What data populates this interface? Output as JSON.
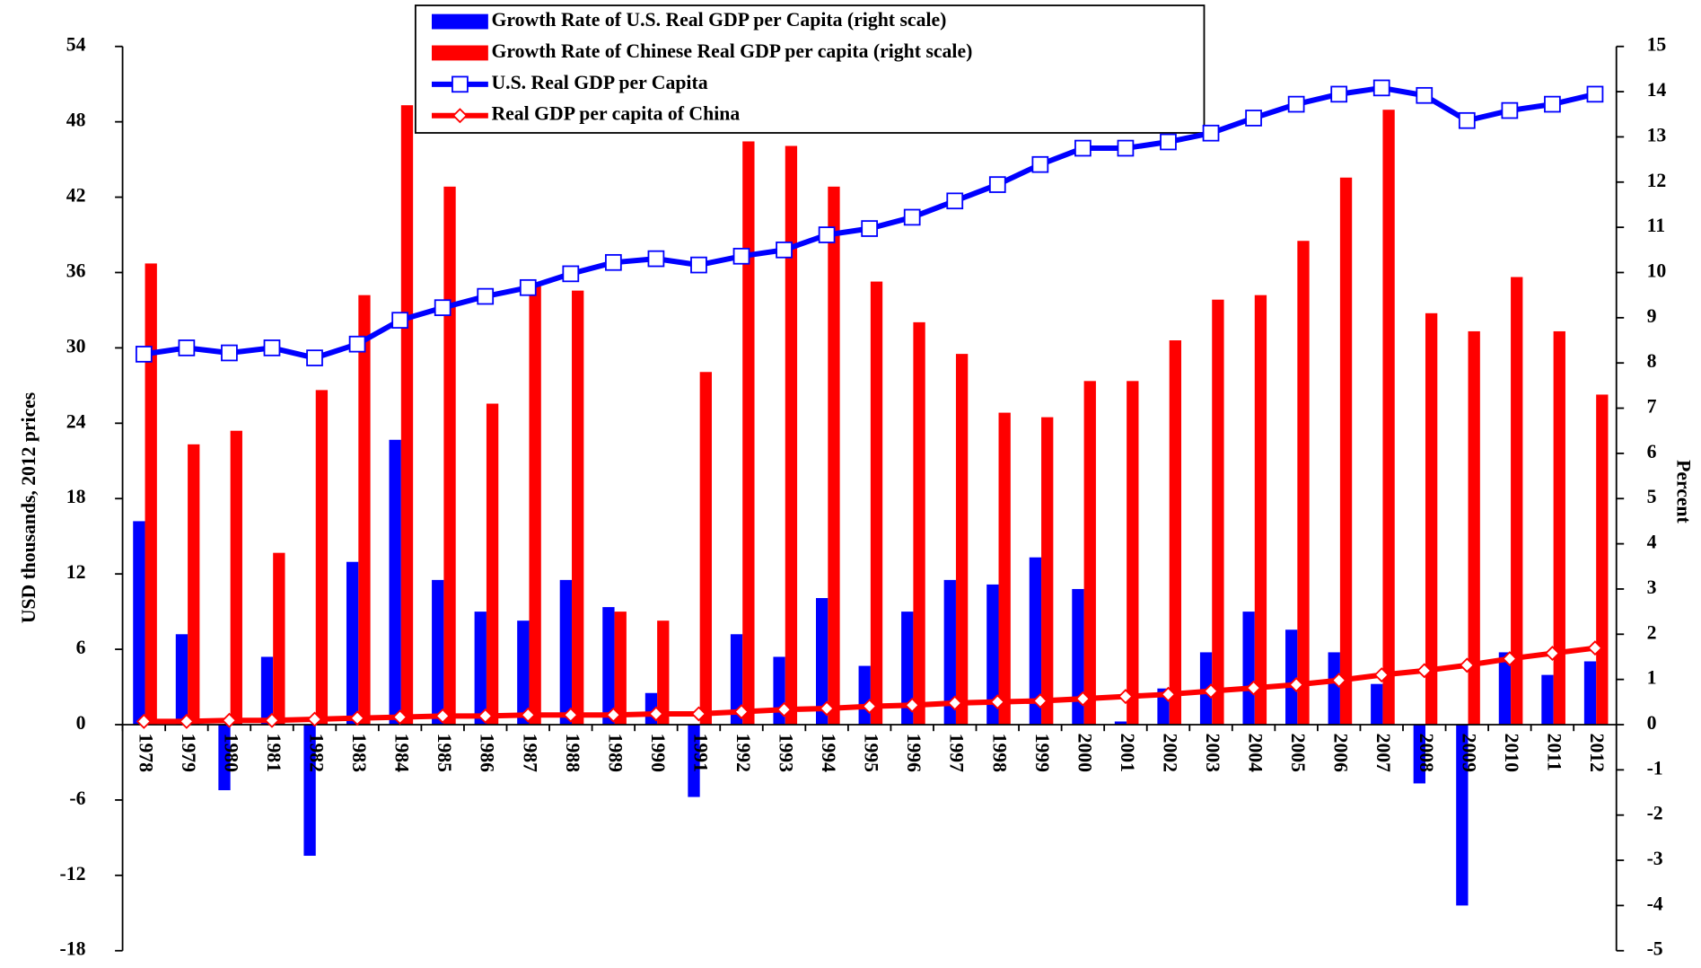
{
  "chart_data": {
    "type": "bar",
    "categories": [
      "1978",
      "1979",
      "1980",
      "1981",
      "1982",
      "1983",
      "1984",
      "1985",
      "1986",
      "1987",
      "1988",
      "1989",
      "1990",
      "1991",
      "1992",
      "1993",
      "1994",
      "1995",
      "1996",
      "1997",
      "1998",
      "1999",
      "2000",
      "2001",
      "2002",
      "2003",
      "2004",
      "2005",
      "2006",
      "2007",
      "2008",
      "2009",
      "2010",
      "2011",
      "2012"
    ],
    "ylabel": "USD thousands, 2012 prices",
    "y2label": "Percent",
    "ylim": [
      -18,
      54
    ],
    "yticks": [
      -18,
      -12,
      -6,
      0,
      6,
      12,
      18,
      24,
      30,
      36,
      42,
      48,
      54
    ],
    "y2lim": [
      -5,
      15
    ],
    "y2ticks": [
      -5,
      -4,
      -3,
      -2,
      -1,
      0,
      1,
      2,
      3,
      4,
      5,
      6,
      7,
      8,
      9,
      10,
      11,
      12,
      13,
      14,
      15
    ],
    "series": [
      {
        "name": "Growth Rate of U.S. Real GDP per Capita (right scale)",
        "type": "bar",
        "axis": "y2",
        "color": "#0000ff",
        "values": [
          4.5,
          2.0,
          -1.45,
          1.5,
          -2.9,
          3.6,
          6.3,
          3.2,
          2.5,
          2.3,
          3.2,
          2.6,
          0.7,
          -1.6,
          2.0,
          1.5,
          2.8,
          1.3,
          2.5,
          3.2,
          3.1,
          3.7,
          3.0,
          0.07,
          0.8,
          1.6,
          2.5,
          2.1,
          1.6,
          0.9,
          -1.3,
          -4.0,
          1.6,
          1.1,
          1.4
        ]
      },
      {
        "name": "Growth Rate of Chinese Real GDP per capita (right scale)",
        "type": "bar",
        "axis": "y2",
        "color": "#ff0000",
        "values": [
          10.2,
          6.2,
          6.5,
          3.8,
          7.4,
          9.5,
          13.7,
          11.9,
          7.1,
          9.7,
          9.6,
          2.5,
          2.3,
          7.8,
          12.9,
          12.8,
          11.9,
          9.8,
          8.9,
          8.2,
          6.9,
          6.8,
          7.6,
          7.6,
          8.5,
          9.4,
          9.5,
          10.7,
          12.1,
          13.6,
          9.1,
          8.7,
          9.9,
          8.7,
          7.3
        ]
      },
      {
        "name": "U.S. Real GDP per Capita",
        "type": "line",
        "marker": "square",
        "color": "#0000ff",
        "values": [
          29.5,
          30.0,
          29.6,
          30.0,
          29.2,
          30.3,
          32.2,
          33.2,
          34.1,
          34.8,
          35.9,
          36.8,
          37.1,
          36.6,
          37.3,
          37.8,
          39.0,
          39.5,
          40.4,
          41.7,
          43.0,
          44.6,
          45.9,
          45.9,
          46.4,
          47.1,
          48.3,
          49.4,
          50.2,
          50.7,
          50.1,
          48.1,
          48.9,
          49.4,
          50.2
        ]
      },
      {
        "name": "Real GDP per capita of China",
        "type": "line",
        "marker": "diamond",
        "color": "#ff0000",
        "values": [
          0.26,
          0.26,
          0.34,
          0.34,
          0.43,
          0.52,
          0.6,
          0.69,
          0.69,
          0.77,
          0.77,
          0.77,
          0.86,
          0.86,
          1.03,
          1.2,
          1.29,
          1.46,
          1.55,
          1.72,
          1.81,
          1.89,
          2.06,
          2.24,
          2.41,
          2.67,
          2.92,
          3.18,
          3.53,
          3.96,
          4.3,
          4.73,
          5.25,
          5.68,
          6.1
        ]
      }
    ]
  }
}
